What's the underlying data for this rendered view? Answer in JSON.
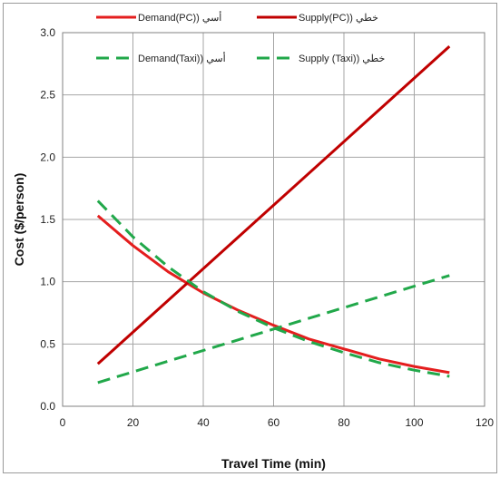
{
  "chart_data": {
    "type": "line",
    "xlabel": "Travel Time (min)",
    "ylabel": "Cost ($/person)",
    "xlim": [
      0,
      120
    ],
    "ylim": [
      0.0,
      3.0
    ],
    "xticks": [
      "0",
      "20",
      "40",
      "60",
      "80",
      "100",
      "120"
    ],
    "yticks": [
      "0.0",
      "0.5",
      "1.0",
      "1.5",
      "2.0",
      "2.5",
      "3.0"
    ],
    "grid": true,
    "legend_position": "top",
    "series": [
      {
        "name": "Demand(PC)) أسي",
        "color": "#e41e1e",
        "dash": "solid",
        "x": [
          10,
          20,
          30,
          40,
          50,
          60,
          70,
          80,
          90,
          100,
          110
        ],
        "y": [
          1.53,
          1.29,
          1.08,
          0.91,
          0.77,
          0.65,
          0.54,
          0.46,
          0.38,
          0.32,
          0.27
        ]
      },
      {
        "name": "Supply(PC)) خطي",
        "color": "#c00000",
        "dash": "solid",
        "x": [
          10,
          110
        ],
        "y": [
          0.34,
          2.89
        ]
      },
      {
        "name": "Demand(Taxi)) أسي",
        "color": "#21a84a",
        "dash": "dashed",
        "x": [
          10,
          20,
          30,
          40,
          50,
          60,
          70,
          80,
          90,
          100,
          110
        ],
        "y": [
          1.65,
          1.36,
          1.12,
          0.92,
          0.76,
          0.63,
          0.52,
          0.43,
          0.35,
          0.29,
          0.24
        ]
      },
      {
        "name": "Supply (Taxi)) خطي",
        "color": "#21a84a",
        "dash": "dashed",
        "x": [
          10,
          110
        ],
        "y": [
          0.19,
          1.05
        ]
      }
    ]
  }
}
